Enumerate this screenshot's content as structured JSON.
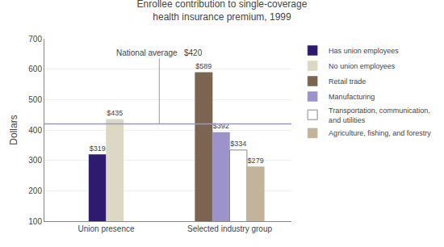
{
  "chart_data": {
    "type": "bar",
    "title": "Enrollee contribution to single-coverage\nhealth insurance premium, 1999",
    "ylabel": "Dollars",
    "categories": [
      "Union presence",
      "Selected industry group"
    ],
    "series": [
      {
        "name": "Has union employees",
        "color": "#2e1a6e",
        "values": [
          319,
          null
        ],
        "value_labels": [
          "$319",
          null
        ]
      },
      {
        "name": "No union employees",
        "color": "#ddd8c4",
        "values": [
          435,
          null
        ],
        "value_labels": [
          "$435",
          null
        ]
      },
      {
        "name": "Retail trade",
        "color": "#7a6550",
        "values": [
          null,
          589
        ],
        "value_labels": [
          null,
          "$589"
        ]
      },
      {
        "name": "Manufacturing",
        "color": "#9b93c9",
        "values": [
          null,
          392
        ],
        "value_labels": [
          null,
          "$392"
        ]
      },
      {
        "name": "Transportation, communication,\nand utilities",
        "color": "#ffffff",
        "values": [
          null,
          334
        ],
        "value_labels": [
          null,
          "$334"
        ]
      },
      {
        "name": "Agriculture, fishing, and forestry",
        "color": "#c2b49a",
        "values": [
          null,
          279
        ],
        "value_labels": [
          null,
          "$279"
        ]
      }
    ],
    "ylim": [
      100,
      700
    ],
    "yticks": [
      100,
      200,
      300,
      400,
      500,
      600,
      700
    ],
    "grid": true,
    "legend": "upper right",
    "data_labels": true,
    "annotations": [
      {
        "text": "National average   $420",
        "y": 420,
        "color": "#9b93c9"
      }
    ]
  }
}
